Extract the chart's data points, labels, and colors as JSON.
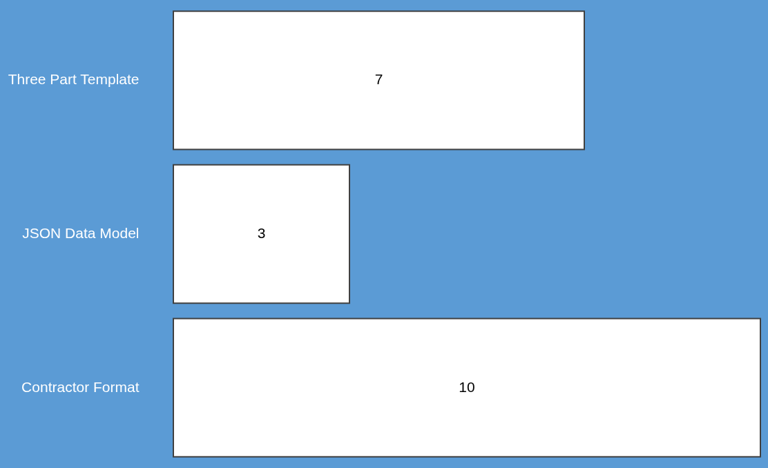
{
  "chart_data": {
    "type": "bar",
    "orientation": "horizontal",
    "categories": [
      "Three Part Template",
      "JSON Data Model",
      "Contractor Format"
    ],
    "values": [
      7,
      3,
      10
    ],
    "colors": [
      "#ffffff",
      "#ffffff",
      "#ffffff"
    ],
    "data_labels": true,
    "grid": false
  }
}
